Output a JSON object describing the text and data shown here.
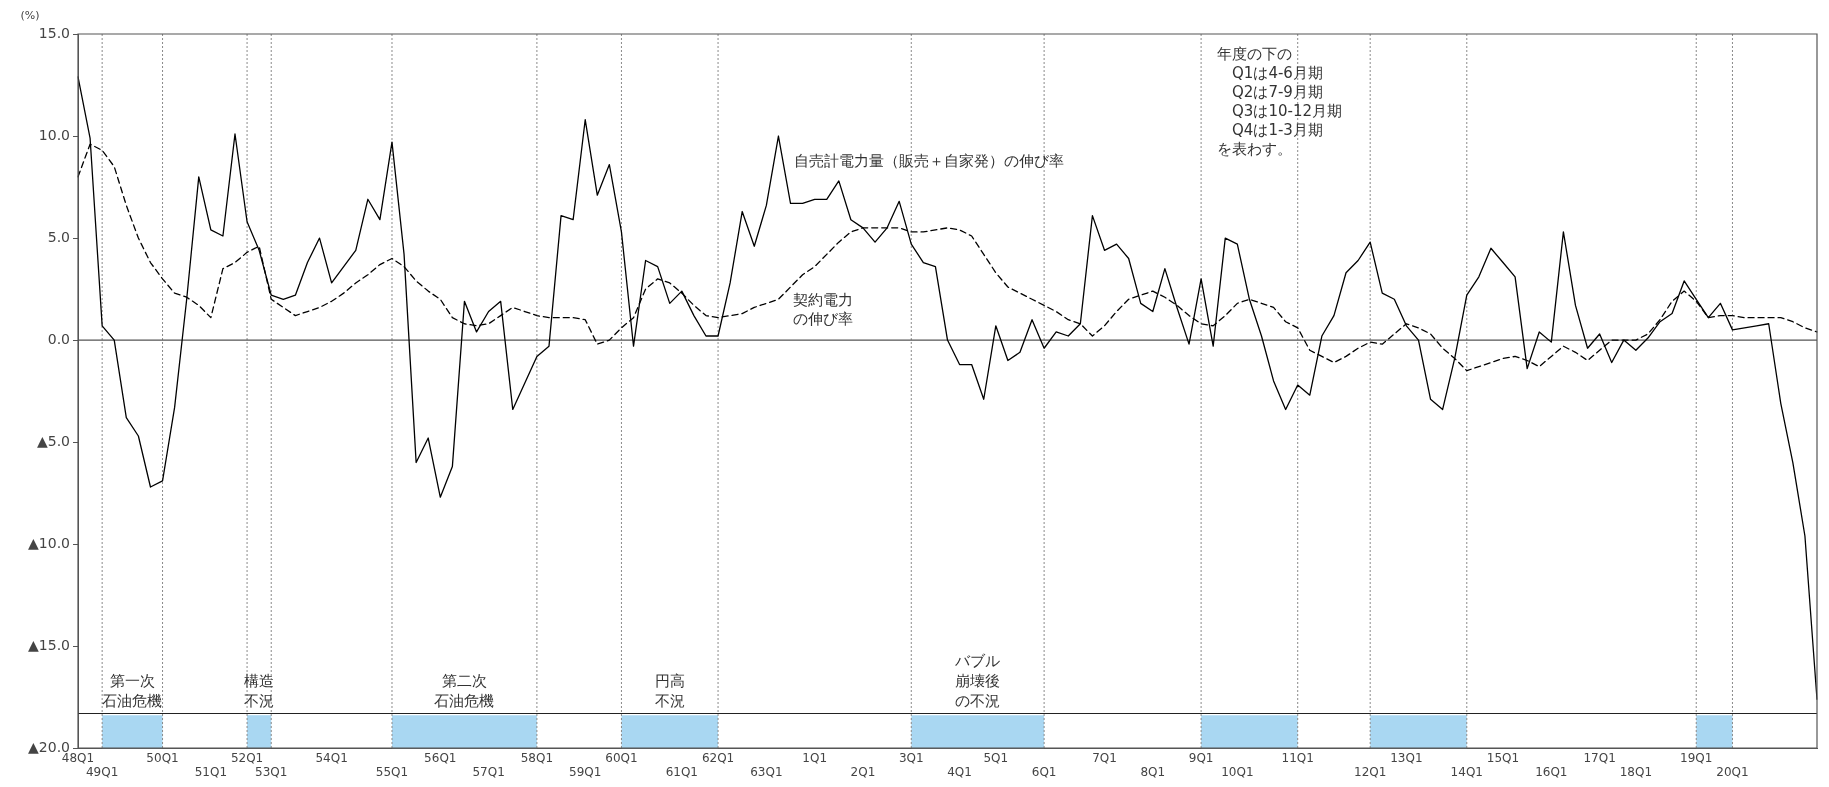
{
  "chart_data": {
    "type": "line",
    "ylabel": "(%)",
    "ylim": [
      -20,
      15
    ],
    "categories": [
      "48Q1",
      null,
      "49Q1",
      null,
      null,
      null,
      null,
      "50Q1",
      null,
      null,
      null,
      "51Q1",
      null,
      null,
      "52Q1",
      null,
      "53Q1",
      null,
      null,
      null,
      null,
      "54Q1",
      null,
      null,
      null,
      null,
      "55Q1",
      null,
      null,
      null,
      "56Q1",
      null,
      null,
      null,
      "57Q1",
      null,
      null,
      null,
      "58Q1",
      null,
      null,
      null,
      "59Q1",
      null,
      null,
      "60Q1",
      null,
      null,
      null,
      null,
      "61Q1",
      null,
      null,
      "62Q1",
      null,
      null,
      null,
      "63Q1",
      null,
      null,
      null,
      "1Q1",
      null,
      null,
      null,
      "2Q1",
      null,
      null,
      null,
      "3Q1",
      null,
      null,
      null,
      "4Q1",
      null,
      null,
      "5Q1",
      null,
      null,
      null,
      "6Q1",
      null,
      null,
      null,
      null,
      "7Q1",
      null,
      null,
      null,
      "8Q1",
      null,
      null,
      null,
      "9Q1",
      null,
      null,
      "10Q1",
      null,
      null,
      null,
      null,
      "11Q1",
      null,
      null,
      null,
      null,
      null,
      "12Q1",
      null,
      null,
      "13Q1",
      null,
      null,
      null,
      null,
      "14Q1",
      null,
      null,
      "15Q1",
      null,
      null,
      null,
      "16Q1",
      null,
      null,
      null,
      "17Q1",
      null,
      null,
      "18Q1",
      null,
      null,
      null,
      null,
      "19Q1",
      null,
      null,
      "20Q1",
      null,
      null,
      null,
      null,
      null,
      null,
      null
    ],
    "yticks": [
      {
        "value": 15,
        "label": "15.0"
      },
      {
        "value": 10,
        "label": "10.0"
      },
      {
        "value": 5,
        "label": "5.0"
      },
      {
        "value": 0,
        "label": "0.0"
      },
      {
        "value": -5,
        "label": "▲5.0"
      },
      {
        "value": -10,
        "label": "▲10.0"
      },
      {
        "value": -15,
        "label": "▲15.0"
      },
      {
        "value": -20,
        "label": "▲20.0"
      }
    ],
    "grid": false,
    "legend": false,
    "series": [
      {
        "color": "#000000",
        "line_style": "solid",
        "values": [
          12.9,
          9.9,
          0.7,
          0.0,
          -3.8,
          -4.7,
          -7.2,
          -6.9,
          -3.3,
          2.0,
          8.0,
          5.4,
          5.1,
          10.1,
          5.8,
          4.4,
          2.2,
          2.0,
          2.2,
          3.8,
          5.0,
          2.8,
          3.6,
          4.4,
          6.9,
          5.9,
          9.7,
          4.2,
          -6.0,
          -4.8,
          -7.7,
          -6.2,
          1.9,
          0.4,
          1.4,
          1.9,
          -3.4,
          -2.1,
          -0.8,
          -0.3,
          6.1,
          5.9,
          10.8,
          7.1,
          8.6,
          5.3,
          -0.3,
          3.9,
          3.6,
          1.8,
          2.4,
          1.2,
          0.2,
          0.2,
          2.8,
          6.3,
          4.6,
          6.6,
          10.0,
          6.7,
          6.7,
          6.9,
          6.9,
          7.8,
          5.9,
          5.5,
          4.8,
          5.5,
          6.8,
          4.7,
          3.8,
          3.6,
          0.0,
          -1.2,
          -1.2,
          -2.9,
          0.7,
          -1.0,
          -0.6,
          1.0,
          -0.4,
          0.4,
          0.2,
          0.8,
          6.1,
          4.4,
          4.7,
          4.0,
          1.8,
          1.4,
          3.5,
          1.6,
          -0.2,
          3.0,
          -0.3,
          5.0,
          4.7,
          2.0,
          0.2,
          -2.0,
          -3.4,
          -2.2,
          -2.7,
          0.2,
          1.2,
          3.3,
          3.9,
          4.8,
          2.3,
          2.0,
          0.7,
          0.0,
          -2.9,
          -3.4,
          -0.9,
          2.2,
          3.1,
          4.5,
          3.8,
          3.1,
          -1.4,
          0.4,
          -0.1,
          5.3,
          1.7,
          -0.4,
          0.3,
          -1.1,
          0.0,
          -0.5,
          0.1,
          0.9,
          1.3,
          2.9,
          2.0,
          1.1,
          1.8,
          0.5,
          0.6,
          0.7,
          0.8,
          -3.1,
          -6.0,
          -9.6,
          -17.6
        ]
      },
      {
        "color": "#000000",
        "line_style": "dashed",
        "values": [
          8.0,
          9.6,
          9.3,
          8.5,
          6.6,
          5.0,
          3.8,
          3.0,
          2.3,
          2.1,
          1.7,
          1.1,
          3.5,
          3.8,
          4.3,
          4.6,
          2.0,
          1.6,
          1.2,
          1.4,
          1.6,
          1.9,
          2.3,
          2.8,
          3.2,
          3.7,
          4.0,
          3.6,
          2.9,
          2.4,
          2.0,
          1.1,
          0.8,
          0.7,
          0.8,
          1.2,
          1.6,
          1.4,
          1.2,
          1.1,
          1.1,
          1.1,
          1.0,
          -0.2,
          0.0,
          0.6,
          1.1,
          2.5,
          3.0,
          2.8,
          2.3,
          1.7,
          1.2,
          1.1,
          1.2,
          1.3,
          1.6,
          1.8,
          2.0,
          2.6,
          3.2,
          3.6,
          4.2,
          4.8,
          5.3,
          5.5,
          5.5,
          5.5,
          5.5,
          5.3,
          5.3,
          5.4,
          5.5,
          5.4,
          5.1,
          4.2,
          3.3,
          2.6,
          2.3,
          2.0,
          1.7,
          1.4,
          1.0,
          0.8,
          0.2,
          0.7,
          1.4,
          2.0,
          2.2,
          2.4,
          2.1,
          1.7,
          1.2,
          0.8,
          0.7,
          1.2,
          1.8,
          2.0,
          1.8,
          1.6,
          0.9,
          0.6,
          -0.5,
          -0.8,
          -1.1,
          -0.8,
          -0.4,
          -0.1,
          -0.2,
          0.3,
          0.8,
          0.6,
          0.3,
          -0.4,
          -0.9,
          -1.5,
          -1.3,
          -1.1,
          -0.9,
          -0.8,
          -1.0,
          -1.3,
          -0.8,
          -0.3,
          -0.6,
          -1.0,
          -0.5,
          0.0,
          0.0,
          0.0,
          0.3,
          1.0,
          1.9,
          2.4,
          1.9,
          1.1,
          1.2,
          1.2,
          1.1,
          1.1,
          1.1,
          1.1,
          0.9,
          0.6,
          0.4
        ]
      }
    ],
    "ref_lines": [
      {
        "axis": "y",
        "value": 0,
        "color": "#555555"
      },
      {
        "axis": "y",
        "value": -18.3,
        "color": "#222222"
      }
    ],
    "bands": [
      {
        "axis": "x",
        "from": "49Q1",
        "to": "50Q1",
        "label": "第一次石油危機",
        "color": "#a9d7f2"
      },
      {
        "axis": "x",
        "from": "52Q1",
        "to": "53Q1",
        "label": "構造不況",
        "color": "#a9d7f2"
      },
      {
        "axis": "x",
        "from": "55Q1",
        "to": "58Q1",
        "label": "第二次石油危機",
        "color": "#a9d7f2"
      },
      {
        "axis": "x",
        "from": "60Q1",
        "to": "62Q1",
        "label": "円高不況",
        "color": "#a9d7f2"
      },
      {
        "axis": "x",
        "from": "3Q1",
        "to": "6Q1",
        "label": "バブル崩壊後の不況",
        "color": "#a9d7f2"
      },
      {
        "axis": "x",
        "from": "9Q1",
        "to": "11Q1",
        "color": "#a9d7f2"
      },
      {
        "axis": "x",
        "from": "12Q1",
        "to": "14Q1",
        "color": "#a9d7f2"
      },
      {
        "axis": "x",
        "from": "19Q1",
        "to": "20Q1",
        "color": "#a9d7f2"
      }
    ],
    "annotations": [
      "自売計電力量（販売＋自家発）の伸び率",
      "契約電力の伸び率",
      "年度の下の\n　Q1は4-6月期\n　Q2は7-9月期\n　Q3は10-12月期\n　Q4は1-3月期",
      "を表わす。"
    ]
  }
}
